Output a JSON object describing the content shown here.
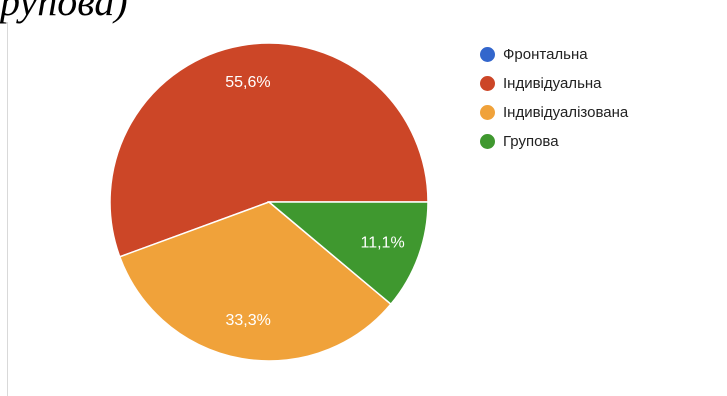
{
  "header_fragment": "рупова)",
  "chart_data": {
    "type": "pie",
    "title": "",
    "legend_position": "right",
    "slices": [
      {
        "label": "Фронтальна",
        "value": 0,
        "display": "",
        "color": "#3366cc"
      },
      {
        "label": "Індивідуальна",
        "value": 55.6,
        "display": "55,6%",
        "color": "#cc4627"
      },
      {
        "label": "Індивідуалізована",
        "value": 33.3,
        "display": "33,3%",
        "color": "#f0a23a"
      },
      {
        "label": "Групова",
        "value": 11.1,
        "display": "11,1%",
        "color": "#3f982f"
      }
    ]
  }
}
